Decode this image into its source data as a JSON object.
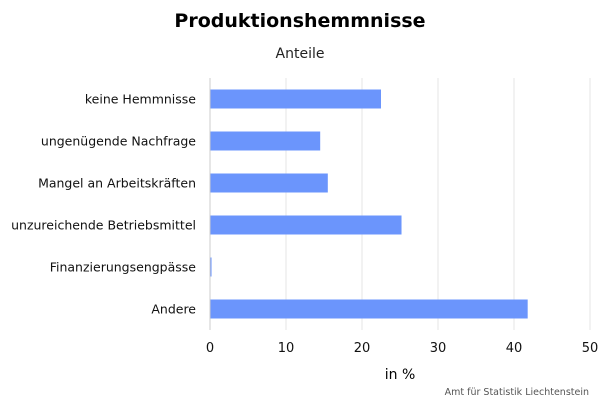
{
  "chart_data": {
    "type": "bar",
    "orientation": "horizontal",
    "title": "Produktionshemmnisse",
    "subtitle": "Anteile",
    "xlabel": "in %",
    "ylabel": "",
    "categories": [
      "keine Hemmnisse",
      "ungenügende Nachfrage",
      "Mangel an Arbeitskräften",
      "unzureichende Betriebsmittel",
      "Finanzierungsengpässe",
      "Andere"
    ],
    "values": [
      22.5,
      14.5,
      15.5,
      25.2,
      0.2,
      41.8
    ],
    "xlim": [
      0,
      50
    ],
    "xticks": [
      0,
      10,
      20,
      30,
      40,
      50
    ],
    "grid": true,
    "legend": "none",
    "bar_color": "#6b95fc",
    "grid_color": "#e6e6e6",
    "axis_color": "#cccccc",
    "credit": "Amt für Statistik Liechtenstein"
  }
}
